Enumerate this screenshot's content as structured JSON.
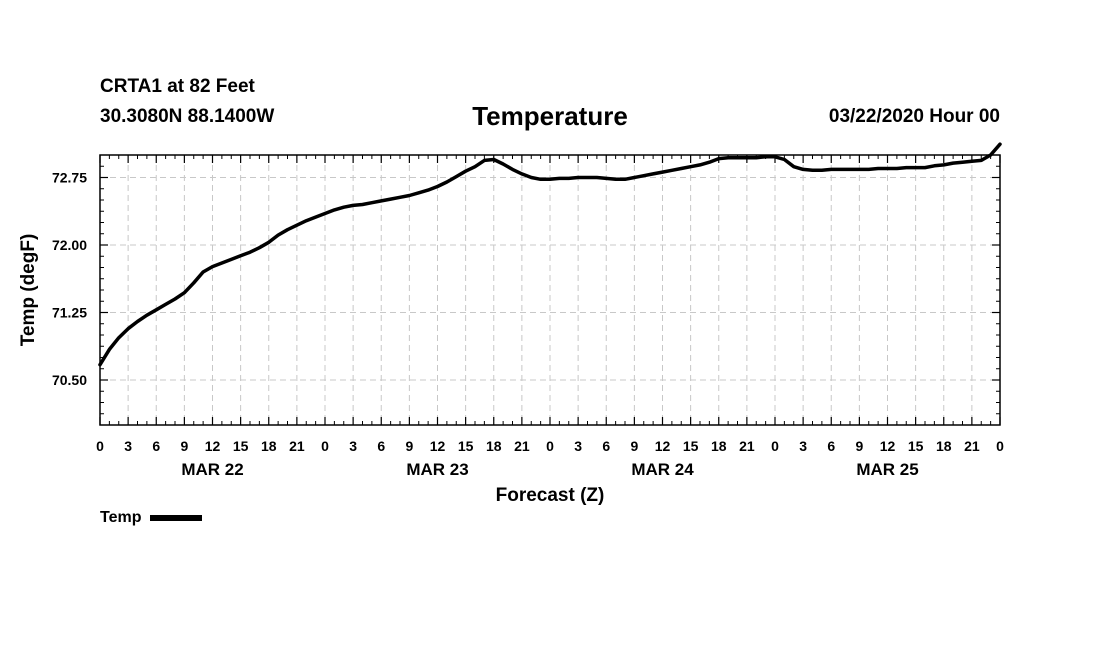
{
  "header": {
    "station": "CRTA1 at 82 Feet",
    "coords": "30.3080N 88.1400W",
    "title": "Temperature",
    "datetime": "03/22/2020 Hour 00"
  },
  "legend": {
    "label": "Temp",
    "color": "#000000"
  },
  "chart_data": {
    "type": "line",
    "title": "Temperature",
    "xlabel": "Forecast (Z)",
    "ylabel": "Temp (degF)",
    "ylim": [
      70.0,
      73.0
    ],
    "yticks": [
      70.5,
      71.25,
      72.0,
      72.75
    ],
    "ytick_labels": [
      "70.50",
      "71.25",
      "72.00",
      "72.75"
    ],
    "xlim": [
      0,
      96
    ],
    "xtick_hours": [
      0,
      3,
      6,
      9,
      12,
      15,
      18,
      21,
      24,
      27,
      30,
      33,
      36,
      39,
      42,
      45,
      48,
      51,
      54,
      57,
      60,
      63,
      66,
      69,
      72,
      75,
      78,
      81,
      84,
      87,
      90,
      93,
      96
    ],
    "xtick_labels": [
      "0",
      "3",
      "6",
      "9",
      "12",
      "15",
      "18",
      "21",
      "0",
      "3",
      "6",
      "9",
      "12",
      "15",
      "18",
      "21",
      "0",
      "3",
      "6",
      "9",
      "12",
      "15",
      "18",
      "21",
      "0",
      "3",
      "6",
      "9",
      "12",
      "15",
      "18",
      "21",
      "0"
    ],
    "day_labels": [
      {
        "hour": 12,
        "label": "MAR 22"
      },
      {
        "hour": 36,
        "label": "MAR 23"
      },
      {
        "hour": 60,
        "label": "MAR 24"
      },
      {
        "hour": 84,
        "label": "MAR 25"
      }
    ],
    "grid": true,
    "series": [
      {
        "name": "Temp",
        "color": "#000000",
        "x": [
          0,
          1,
          2,
          3,
          4,
          5,
          6,
          7,
          8,
          9,
          10,
          11,
          12,
          13,
          14,
          15,
          16,
          17,
          18,
          19,
          20,
          21,
          22,
          23,
          24,
          25,
          26,
          27,
          28,
          29,
          30,
          31,
          32,
          33,
          34,
          35,
          36,
          37,
          38,
          39,
          40,
          41,
          42,
          43,
          44,
          45,
          46,
          47,
          48,
          49,
          50,
          51,
          52,
          53,
          54,
          55,
          56,
          57,
          58,
          59,
          60,
          61,
          62,
          63,
          64,
          65,
          66,
          67,
          68,
          69,
          70,
          71,
          72,
          73,
          74,
          75,
          76,
          77,
          78,
          79,
          80,
          81,
          82,
          83,
          84,
          85,
          86,
          87,
          88,
          89,
          90,
          91,
          92,
          93,
          94,
          95,
          96
        ],
        "values": [
          70.67,
          70.84,
          70.97,
          71.07,
          71.15,
          71.22,
          71.28,
          71.34,
          71.4,
          71.47,
          71.58,
          71.7,
          71.76,
          71.8,
          71.84,
          71.88,
          71.92,
          71.97,
          72.03,
          72.11,
          72.17,
          72.22,
          72.27,
          72.31,
          72.35,
          72.39,
          72.42,
          72.44,
          72.45,
          72.47,
          72.49,
          72.51,
          72.53,
          72.55,
          72.58,
          72.61,
          72.65,
          72.7,
          72.76,
          72.82,
          72.87,
          72.94,
          72.95,
          72.9,
          72.84,
          72.79,
          72.75,
          72.73,
          72.73,
          72.74,
          72.74,
          72.75,
          72.75,
          72.75,
          72.74,
          72.73,
          72.73,
          72.75,
          72.77,
          72.79,
          72.81,
          72.83,
          72.85,
          72.87,
          72.89,
          72.92,
          72.96,
          72.97,
          72.97,
          72.97,
          72.97,
          72.98,
          72.98,
          72.95,
          72.87,
          72.84,
          72.83,
          72.83,
          72.84,
          72.84,
          72.84,
          72.84,
          72.84,
          72.85,
          72.85,
          72.85,
          72.86,
          72.86,
          72.86,
          72.88,
          72.89,
          72.91,
          72.92,
          72.93,
          72.94,
          73.0,
          73.12
        ]
      }
    ]
  }
}
